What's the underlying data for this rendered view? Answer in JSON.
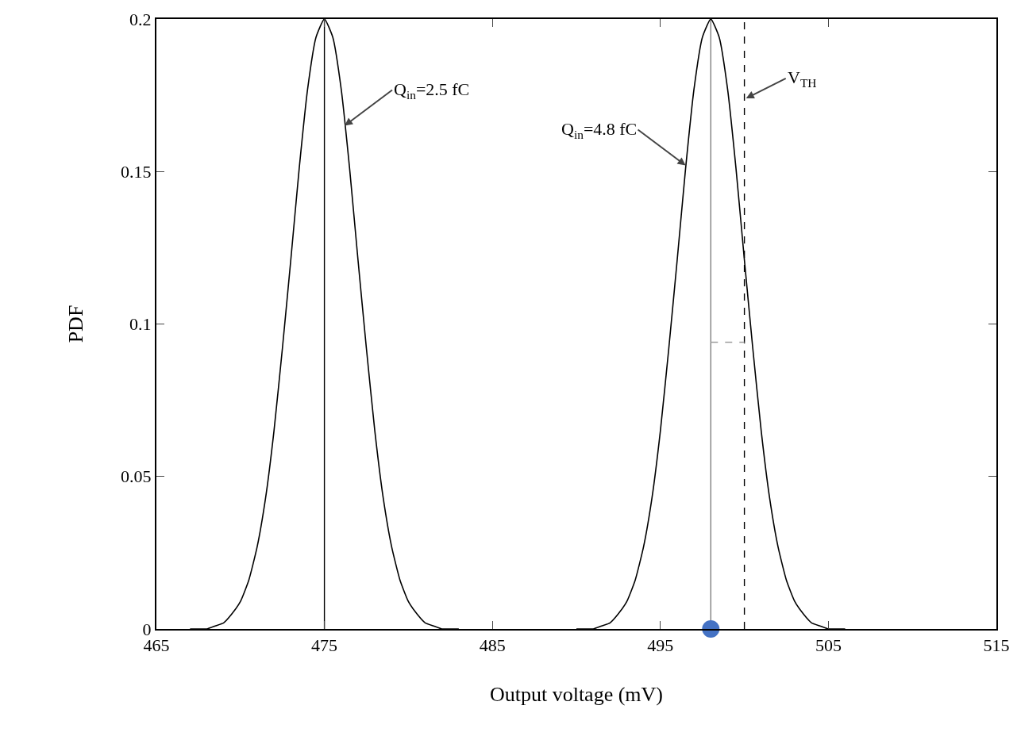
{
  "chart_data": {
    "type": "line",
    "xlabel": "Output voltage (mV)",
    "ylabel": "PDF",
    "xlim": [
      465,
      515
    ],
    "xticks": [
      465,
      475,
      485,
      495,
      505,
      515
    ],
    "ylim": [
      0,
      0.2
    ],
    "yticks": [
      0,
      0.05,
      0.1,
      0.15,
      0.2
    ],
    "grid": false,
    "marker": "none",
    "line_style": "solid",
    "series": [
      {
        "color": "#000000",
        "x": [
          467,
          467.5,
          468,
          468.5,
          469,
          469.5,
          470,
          470.5,
          471,
          471.5,
          472,
          472.5,
          473,
          473.5,
          474,
          474.5,
          475,
          475.5,
          476,
          476.5,
          477,
          477.5,
          478,
          478.5,
          479,
          479.5,
          480,
          480.5,
          481,
          481.5,
          482,
          482.5,
          483
        ],
        "values": [
          0,
          0,
          0,
          0.001,
          0.002,
          0.005,
          0.009,
          0.016,
          0.027,
          0.043,
          0.065,
          0.092,
          0.121,
          0.151,
          0.177,
          0.194,
          0.2,
          0.194,
          0.177,
          0.151,
          0.121,
          0.092,
          0.065,
          0.043,
          0.027,
          0.016,
          0.009,
          0.005,
          0.002,
          0.001,
          0,
          0,
          0
        ]
      },
      {
        "color": "#000000",
        "x": [
          490,
          490.5,
          491,
          491.5,
          492,
          492.5,
          493,
          493.5,
          494,
          494.5,
          495,
          495.5,
          496,
          496.5,
          497,
          497.5,
          498,
          498.5,
          499,
          499.5,
          500,
          500.5,
          501,
          501.5,
          502,
          502.5,
          503,
          503.5,
          504,
          504.5,
          505,
          505.5,
          506
        ],
        "values": [
          0,
          0,
          0,
          0.001,
          0.002,
          0.005,
          0.009,
          0.016,
          0.027,
          0.043,
          0.065,
          0.092,
          0.121,
          0.151,
          0.177,
          0.194,
          0.2,
          0.194,
          0.177,
          0.151,
          0.121,
          0.092,
          0.065,
          0.043,
          0.027,
          0.016,
          0.009,
          0.005,
          0.002,
          0.001,
          0,
          0,
          0
        ]
      },
      {
        "color": "#a0a0a0",
        "line_style": "dashed",
        "x": [
          498,
          500
        ],
        "values": [
          0.094,
          0.094
        ]
      },
      {
        "type": "scatter",
        "color": "#4472c4",
        "marker": "circle",
        "x": [
          498
        ],
        "values": [
          0
        ]
      }
    ],
    "ref_lines": [
      {
        "axis": "x",
        "value": 475,
        "color": "#000000",
        "line_style": "solid"
      },
      {
        "axis": "x",
        "value": 498,
        "color": "#808080",
        "line_style": "solid"
      },
      {
        "axis": "x",
        "value": 500,
        "color": "#000000",
        "line_style": "dashed"
      }
    ],
    "annotations": [
      {
        "text": "Q$_{in}$=2.5 fC",
        "x": 476.2,
        "y": 0.165
      },
      {
        "text": "Q$_{in}$=4.8 fC",
        "x": 496.5,
        "y": 0.152
      },
      {
        "text": "V$_{TH}$",
        "x": 500.1,
        "y": 0.174
      }
    ]
  }
}
